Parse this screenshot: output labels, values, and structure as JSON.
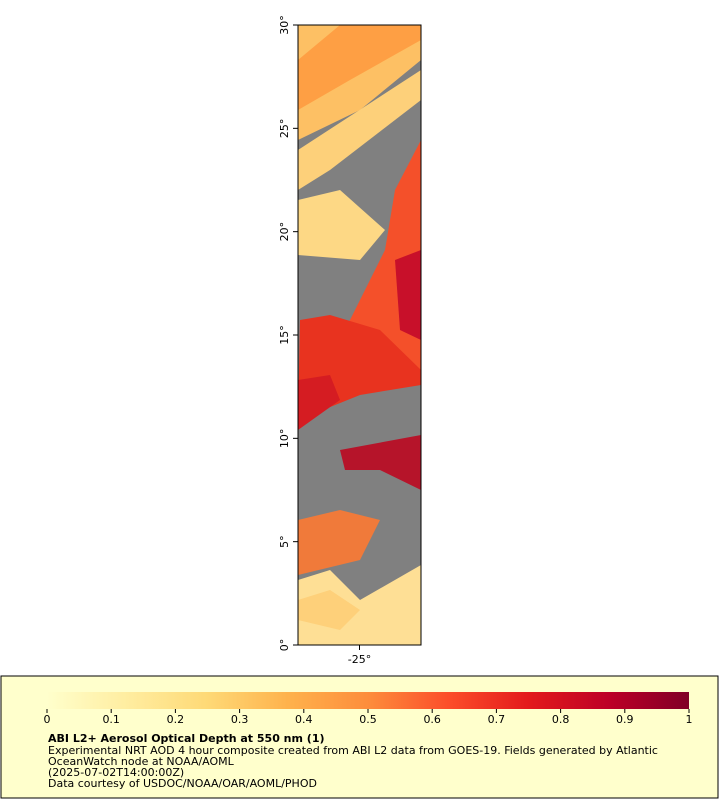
{
  "map": {
    "ylim": [
      0,
      30
    ],
    "yticks": [
      {
        "value": 0,
        "label": "0°"
      },
      {
        "value": 5,
        "label": "5°"
      },
      {
        "value": 10,
        "label": "10°"
      },
      {
        "value": 15,
        "label": "15°"
      },
      {
        "value": 20,
        "label": "20°"
      },
      {
        "value": 25,
        "label": "25°"
      },
      {
        "value": 30,
        "label": "30°"
      }
    ],
    "xlim": [
      -28,
      -22
    ],
    "xticks": [
      {
        "value": -25,
        "label": "-25°"
      }
    ]
  },
  "colorbar": {
    "lim": [
      0,
      1
    ],
    "ticks": [
      0,
      0.1,
      0.2,
      0.3,
      0.4,
      0.5,
      0.6,
      0.7,
      0.8,
      0.9,
      1
    ],
    "colors": [
      "#ffffcc",
      "#ffeda0",
      "#fed976",
      "#feb24c",
      "#fd8d3c",
      "#fc4e2a",
      "#e31a1c",
      "#bd0026",
      "#800026"
    ]
  },
  "legend": {
    "title": "ABI L2+ Aerosol Optical Depth at 550 nm (1)",
    "lines": [
      "Experimental NRT AOD 4 hour composite created from ABI L2 data from GOES-19. Fields generated by Atlantic",
      "OceanWatch node at NOAA/AOML",
      "(2025-07-02T14:00:00Z)",
      "Data courtesy of USDOC/NOAA/OAR/AOML/PHOD"
    ]
  }
}
